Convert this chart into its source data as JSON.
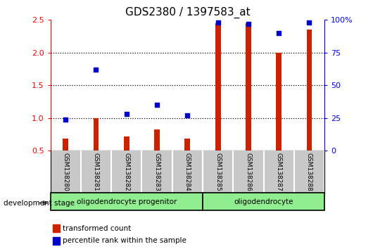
{
  "title": "GDS2380 / 1397583_at",
  "samples": [
    "GSM138280",
    "GSM138281",
    "GSM138282",
    "GSM138283",
    "GSM138284",
    "GSM138285",
    "GSM138286",
    "GSM138287",
    "GSM138288"
  ],
  "transformed_count": [
    0.68,
    1.0,
    0.72,
    0.82,
    0.68,
    2.45,
    2.45,
    2.0,
    2.35
  ],
  "percentile_rank": [
    24,
    62,
    28,
    35,
    27,
    98,
    97,
    90,
    98
  ],
  "groups": [
    {
      "label": "oligodendrocyte progenitor",
      "start": 0,
      "end": 4
    },
    {
      "label": "oligodendrocyte",
      "start": 5,
      "end": 8
    }
  ],
  "group_label": "development stage",
  "ylim_left": [
    0.5,
    2.5
  ],
  "ylim_right": [
    0,
    100
  ],
  "yticks_left": [
    0.5,
    1.0,
    1.5,
    2.0,
    2.5
  ],
  "yticks_right": [
    0,
    25,
    50,
    75,
    100
  ],
  "ytick_labels_right": [
    "0",
    "25",
    "50",
    "75",
    "100%"
  ],
  "bar_color": "#CC2200",
  "scatter_color": "#0000CC",
  "bar_width": 0.18,
  "title_fontsize": 11,
  "tick_fontsize": 8,
  "group_box_color": "#90EE90",
  "group_border_color": "black",
  "sample_bg_color": "#C8C8C8",
  "sample_sep_color": "#FFFFFF"
}
